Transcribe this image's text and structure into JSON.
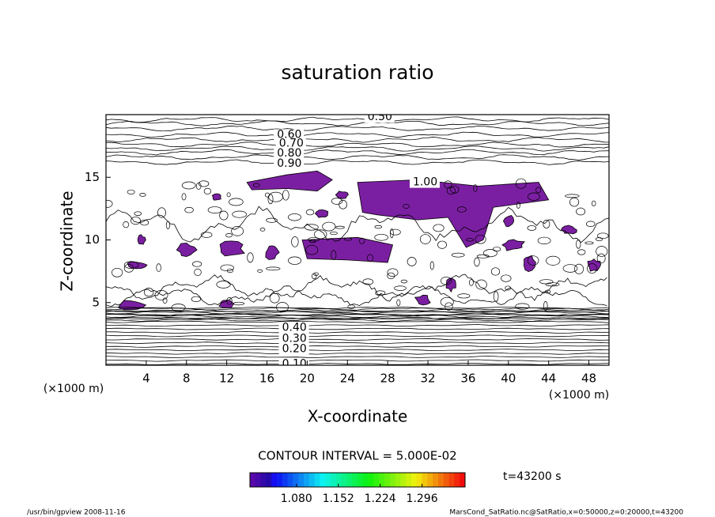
{
  "chart_data": {
    "type": "contour",
    "title": "saturation ratio",
    "x_label": "X-coordinate",
    "y_label": "Z-coordinate",
    "x_unit": "(×1000 m)",
    "y_unit": "(×1000 m)",
    "xlim": [
      0,
      50
    ],
    "xticks": [
      4,
      8,
      12,
      16,
      20,
      24,
      28,
      32,
      36,
      40,
      44,
      48
    ],
    "ylim": [
      0,
      20
    ],
    "yticks": [
      5,
      10,
      15
    ],
    "contour_levels": [
      {
        "value": 0.5,
        "label": "0.50"
      },
      {
        "value": 0.6,
        "label": "0.60"
      },
      {
        "value": 0.7,
        "label": "0.70"
      },
      {
        "value": 0.8,
        "label": "0.80"
      },
      {
        "value": 0.9,
        "label": "0.90"
      },
      {
        "value": 1.0,
        "label": "1.00"
      },
      {
        "value": 0.4,
        "label": "0.40"
      },
      {
        "value": 0.3,
        "label": "0.30"
      },
      {
        "value": 0.2,
        "label": "0.20"
      },
      {
        "value": 0.1,
        "label": "0.10"
      }
    ],
    "contour_interval": "CONTOUR INTERVAL = 5.000E-02",
    "shade_color": "#7b1fa2",
    "colorbar": {
      "clim": [
        1.0,
        1.37
      ],
      "ticks": [
        {
          "value": 1.08,
          "label": "1.080"
        },
        {
          "value": 1.152,
          "label": "1.152"
        },
        {
          "value": 1.224,
          "label": "1.224"
        },
        {
          "value": 1.296,
          "label": "1.296"
        }
      ]
    },
    "time_label": "t=43200 s",
    "footer_left": "/usr/bin/gpview  2008-11-16",
    "footer_right": "MarsCond_SatRatio.nc@SatRatio,x=0:50000,z=0:20000,t=43200"
  }
}
